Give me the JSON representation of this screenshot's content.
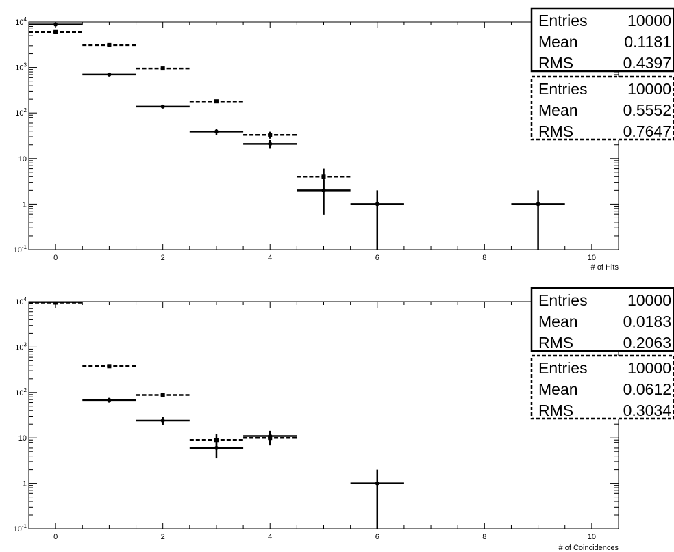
{
  "chart_data": [
    {
      "type": "histogram",
      "xlabel": "# of Hits",
      "ylabel": "",
      "xlim": [
        -0.5,
        10.5
      ],
      "ylim": [
        0.1,
        10000
      ],
      "yscale": "log",
      "grid": false,
      "xticks": [
        "0",
        "2",
        "4",
        "6",
        "8",
        "10"
      ],
      "yticks": [
        "10-1",
        "1",
        "10",
        "102",
        "103",
        "104"
      ],
      "series": [
        {
          "style": "solid",
          "points": [
            {
              "x": 0,
              "y": 8840
            },
            {
              "x": 1,
              "y": 700
            },
            {
              "x": 2,
              "y": 138
            },
            {
              "x": 3,
              "y": 39
            },
            {
              "x": 4,
              "y": 21
            },
            {
              "x": 5,
              "y": 2
            },
            {
              "x": 6,
              "y": 1
            },
            {
              "x": 9,
              "y": 1
            }
          ]
        },
        {
          "style": "dashed",
          "points": [
            {
              "x": 0,
              "y": 6000
            },
            {
              "x": 1,
              "y": 3100
            },
            {
              "x": 2,
              "y": 950
            },
            {
              "x": 3,
              "y": 180
            },
            {
              "x": 4,
              "y": 33
            },
            {
              "x": 5,
              "y": 4
            }
          ]
        }
      ],
      "stats": [
        {
          "style": "solid",
          "rows": [
            {
              "label": "Entries",
              "value": "10000"
            },
            {
              "label": "Mean",
              "value": "0.1181"
            },
            {
              "label": "RMS",
              "value": "0.4397"
            }
          ]
        },
        {
          "style": "dashed",
          "rows": [
            {
              "label": "Entries",
              "value": "10000"
            },
            {
              "label": "Mean",
              "value": "0.5552"
            },
            {
              "label": "RMS",
              "value": "0.7647"
            }
          ]
        }
      ]
    },
    {
      "type": "histogram",
      "xlabel": "# of Coincidences",
      "ylabel": "",
      "xlim": [
        -0.5,
        10.5
      ],
      "ylim": [
        0.1,
        10000
      ],
      "yscale": "log",
      "grid": false,
      "xticks": [
        "0",
        "2",
        "4",
        "6",
        "8",
        "10"
      ],
      "yticks": [
        "10-1",
        "1",
        "10",
        "102",
        "103",
        "104"
      ],
      "series": [
        {
          "style": "solid",
          "points": [
            {
              "x": 0,
              "y": 9800
            },
            {
              "x": 1,
              "y": 68
            },
            {
              "x": 2,
              "y": 24
            },
            {
              "x": 3,
              "y": 6
            },
            {
              "x": 4,
              "y": 11
            },
            {
              "x": 6,
              "y": 1
            }
          ]
        },
        {
          "style": "dashed",
          "points": [
            {
              "x": 0,
              "y": 9500
            },
            {
              "x": 1,
              "y": 380
            },
            {
              "x": 2,
              "y": 88
            },
            {
              "x": 3,
              "y": 9
            },
            {
              "x": 4,
              "y": 10
            }
          ]
        }
      ],
      "stats": [
        {
          "style": "solid",
          "rows": [
            {
              "label": "Entries",
              "value": "10000"
            },
            {
              "label": "Mean",
              "value": "0.0183"
            },
            {
              "label": "RMS",
              "value": "0.2063"
            }
          ]
        },
        {
          "style": "dashed",
          "rows": [
            {
              "label": "Entries",
              "value": "10000"
            },
            {
              "label": "Mean",
              "value": "0.0612"
            },
            {
              "label": "RMS",
              "value": "0.3034"
            }
          ]
        }
      ]
    }
  ]
}
